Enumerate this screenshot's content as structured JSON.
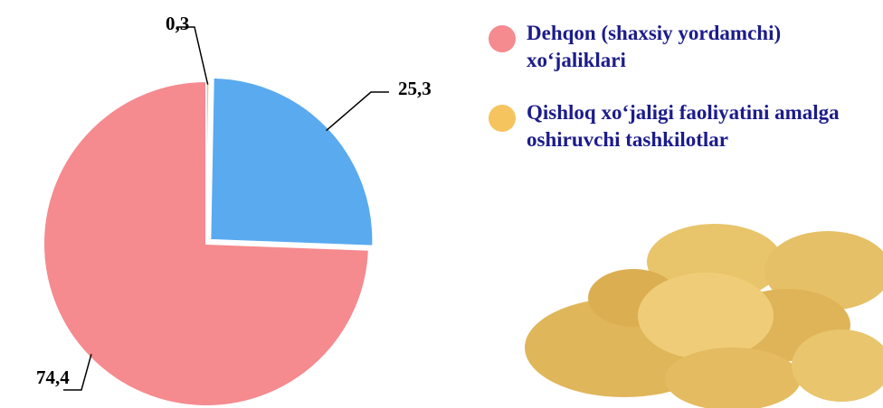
{
  "chart_data": {
    "type": "pie",
    "categories": [
      "Dehqon (shaxsiy yordamchi) xo‘jaliklari",
      "Qishloq xo‘jaligi faoliyatini amalga oshiruvchi tashkilotlar",
      null
    ],
    "values": [
      74.4,
      0.3,
      25.3
    ],
    "value_labels": [
      "74,4",
      "0,3",
      "25,3"
    ],
    "colors": [
      "#f58a8f",
      "#f6c45e",
      "#5aaaf0"
    ]
  }
}
